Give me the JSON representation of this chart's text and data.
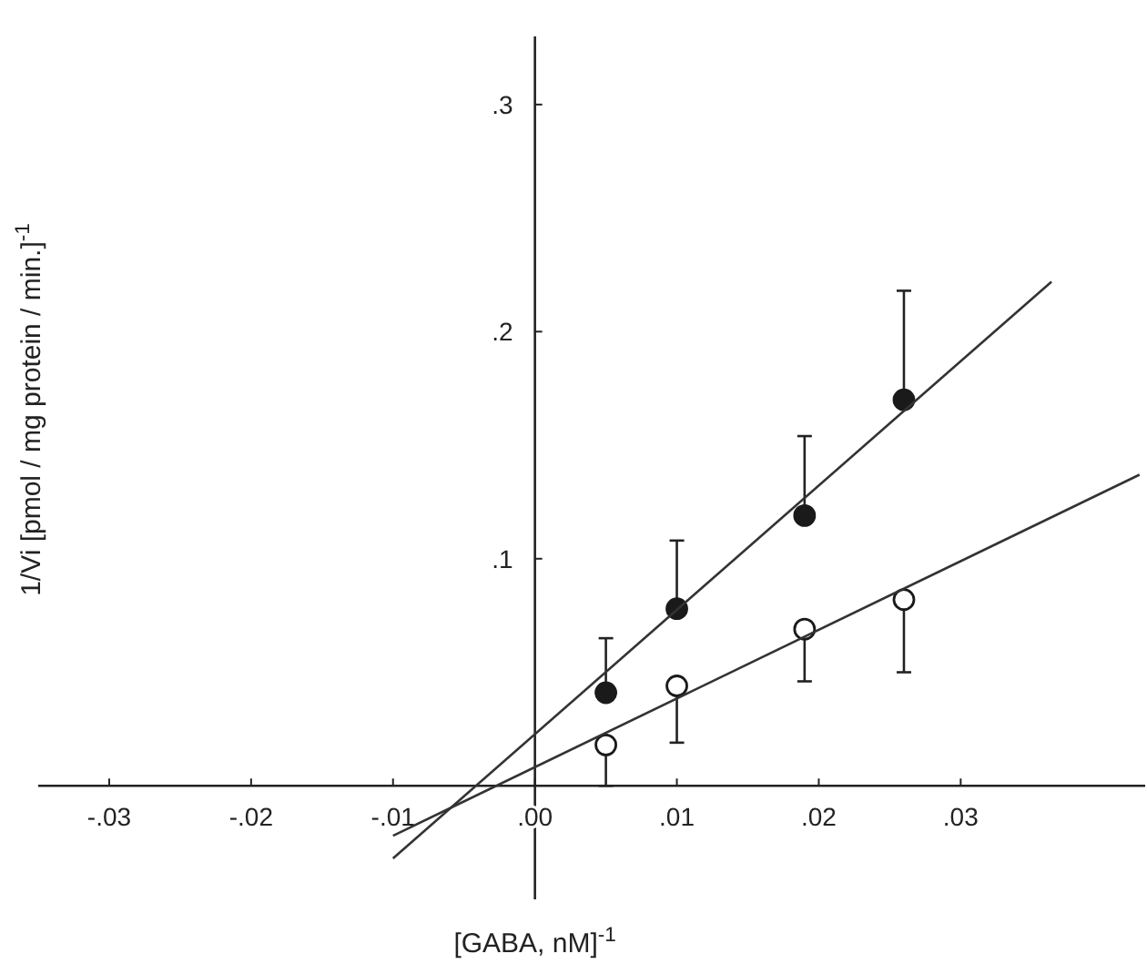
{
  "chart_data": {
    "type": "scatter",
    "xlabel": "[GABA, nM]$^{-1}$",
    "ylabel": "1/Vi [pmol / mg protein / min.]$^{-1}$",
    "xlim": [
      -0.035,
      0.043
    ],
    "ylim": [
      -0.05,
      0.33
    ],
    "xticks": [
      {
        "value": -0.03,
        "label": "-.03"
      },
      {
        "value": -0.02,
        "label": "-.02"
      },
      {
        "value": -0.01,
        "label": "-.01"
      },
      {
        "value": 0,
        "label": ".00"
      },
      {
        "value": 0.01,
        "label": ".01"
      },
      {
        "value": 0.02,
        "label": ".02"
      },
      {
        "value": 0.03,
        "label": ".03"
      }
    ],
    "yticks": [
      {
        "value": 0.1,
        "label": ".1"
      },
      {
        "value": 0.2,
        "label": ".2"
      },
      {
        "value": 0.3,
        "label": ".3"
      }
    ],
    "grid": false,
    "series": [
      {
        "marker": "circle",
        "color": "#1a1a1a",
        "x": [
          0.005,
          0.01,
          0.019,
          0.026
        ],
        "values": [
          0.041,
          0.078,
          0.119,
          0.17
        ],
        "errors": [
          [
            0.041,
            0.065
          ],
          [
            0.078,
            0.108
          ],
          [
            0.119,
            0.154
          ],
          [
            0.17,
            0.218
          ]
        ]
      },
      {
        "marker": "circle",
        "color": "#ffffff",
        "x": [
          0.005,
          0.01,
          0.019,
          0.026
        ],
        "values": [
          0.018,
          0.044,
          0.069,
          0.082
        ],
        "errors": [
          [
            0,
            0.018
          ],
          [
            0.019,
            0.044
          ],
          [
            0.046,
            0.069
          ],
          [
            0.05,
            0.082
          ]
        ]
      },
      {
        "type": "line",
        "color": "#333333",
        "x": [
          -0.01,
          0.0364
        ],
        "values": [
          -0.032,
          0.222
        ],
        "marker": "none"
      },
      {
        "type": "line",
        "color": "#333333",
        "x": [
          -0.01,
          0.0426
        ],
        "values": [
          -0.022,
          0.137
        ],
        "marker": "none"
      }
    ]
  }
}
